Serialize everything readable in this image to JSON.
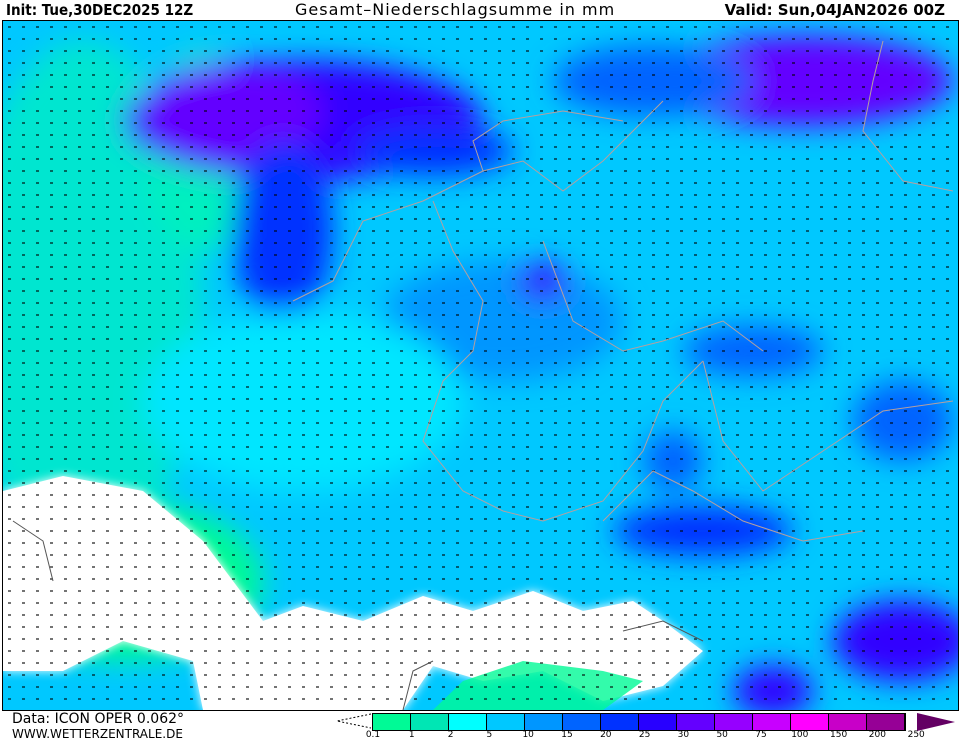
{
  "header": {
    "init": "Init: Tue,30DEC2025 12Z",
    "title": "Gesamt–Niederschlagsumme in mm",
    "valid": "Valid: Sun,04JAN2026 00Z"
  },
  "footer": {
    "data_source": "Data: ICON OPER 0.062°",
    "website": "WWW.WETTERZENTRALE.DE"
  },
  "legend": {
    "unit": "mm",
    "ticks": [
      "0.1",
      "1",
      "2",
      "5",
      "10",
      "15",
      "20",
      "25",
      "30",
      "50",
      "75",
      "100",
      "150",
      "200",
      "250"
    ],
    "colors": [
      "#00fa96",
      "#00e6b4",
      "#00ffff",
      "#00c8ff",
      "#0096ff",
      "#0064ff",
      "#0032ff",
      "#2800ff",
      "#6400ff",
      "#9600ff",
      "#c800ff",
      "#ff00ff",
      "#c800c8",
      "#960096",
      "#640064"
    ]
  },
  "map": {
    "variable": "total precipitation",
    "colors": {
      "no_precip": "#ffffff",
      "borders": "#b4a0a0"
    }
  }
}
